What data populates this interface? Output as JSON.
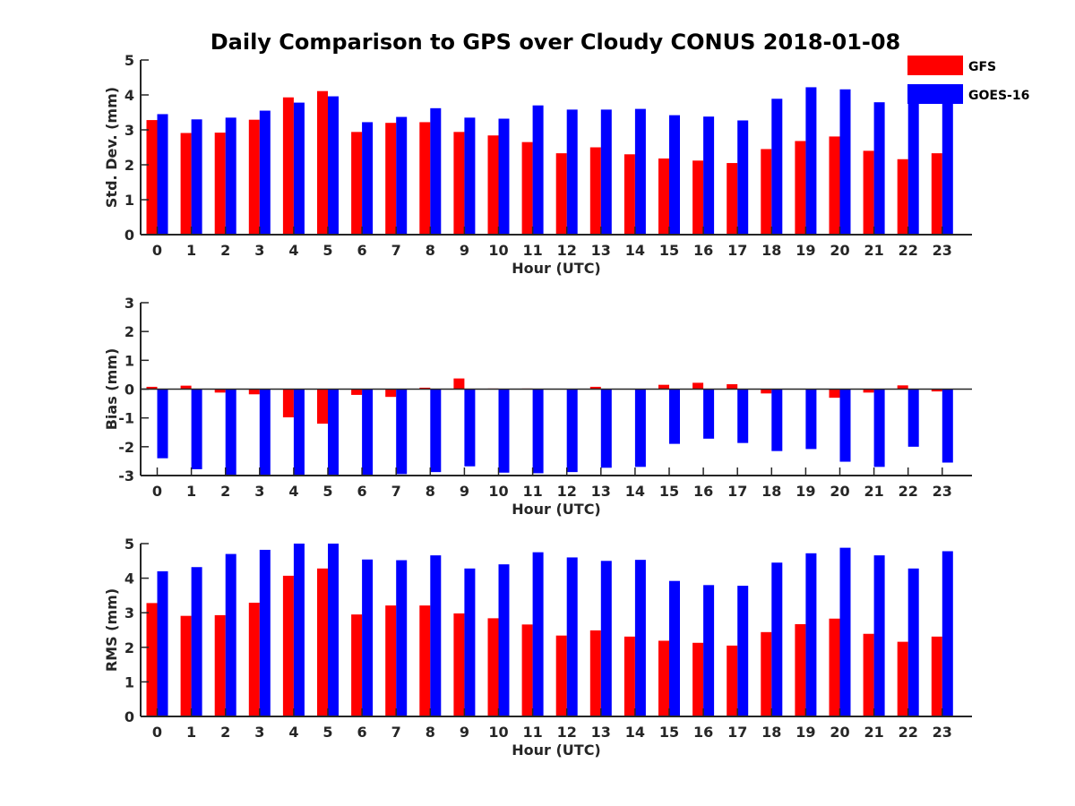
{
  "colors": {
    "gfs": "#ff0000",
    "goes": "#0000ff",
    "axis": "#262626"
  },
  "chart_data": {
    "type": "bar",
    "title": "Daily Comparison to GPS over Cloudy CONUS 2018-01-08",
    "legend": {
      "placement": "top-right",
      "entries": [
        "GFS",
        "GOES-16"
      ]
    },
    "series_names": [
      "GFS",
      "GOES-16"
    ],
    "categories": [
      "0",
      "1",
      "2",
      "3",
      "4",
      "5",
      "6",
      "7",
      "8",
      "9",
      "10",
      "11",
      "12",
      "13",
      "14",
      "15",
      "16",
      "17",
      "18",
      "19",
      "20",
      "21",
      "22",
      "23"
    ],
    "xlabel": "Hour (UTC)",
    "grid": false,
    "panels": [
      {
        "ylabel": "Std. Dev. (mm)",
        "ylim": [
          0,
          5
        ],
        "yticks": [
          "0",
          "1",
          "2",
          "3",
          "4",
          "5"
        ],
        "series": [
          {
            "name": "GFS",
            "values": [
              3.28,
              2.91,
              2.92,
              3.29,
              3.93,
              4.11,
              2.94,
              3.2,
              3.22,
              2.94,
              2.84,
              2.65,
              2.33,
              2.5,
              2.3,
              2.18,
              2.12,
              2.05,
              2.45,
              2.68,
              2.81,
              2.4,
              2.16,
              2.33
            ]
          },
          {
            "name": "GOES-16",
            "values": [
              3.45,
              3.3,
              3.35,
              3.55,
              3.78,
              3.96,
              3.22,
              3.37,
              3.62,
              3.35,
              3.32,
              3.7,
              3.58,
              3.58,
              3.6,
              3.42,
              3.38,
              3.27,
              3.89,
              4.22,
              4.16,
              3.79,
              3.78,
              3.76
            ]
          }
        ]
      },
      {
        "ylabel": "Bias (mm)",
        "ylim": [
          -3,
          3
        ],
        "yticks": [
          "-3",
          "-2",
          "-1",
          "0",
          "1",
          "2",
          "3"
        ],
        "series": [
          {
            "name": "GFS",
            "values": [
              0.08,
              0.12,
              -0.12,
              -0.18,
              -0.98,
              -1.2,
              -0.2,
              -0.27,
              0.05,
              0.37,
              0.02,
              0.02,
              0.0,
              0.08,
              0.0,
              0.15,
              0.22,
              0.17,
              -0.15,
              0.0,
              -0.3,
              -0.12,
              0.13,
              -0.08
            ]
          },
          {
            "name": "GOES-16",
            "values": [
              -2.4,
              -2.78,
              -3.0,
              -3.0,
              -3.0,
              -3.0,
              -3.0,
              -2.95,
              -2.88,
              -2.68,
              -2.9,
              -2.92,
              -2.88,
              -2.73,
              -2.7,
              -1.9,
              -1.72,
              -1.87,
              -2.15,
              -2.08,
              -2.52,
              -2.7,
              -2.0,
              -2.55
            ]
          }
        ]
      },
      {
        "ylabel": "RMS (mm)",
        "ylim": [
          0,
          5
        ],
        "yticks": [
          "0",
          "1",
          "2",
          "3",
          "4",
          "5"
        ],
        "series": [
          {
            "name": "GFS",
            "values": [
              3.28,
              2.91,
              2.93,
              3.29,
              4.07,
              4.28,
              2.95,
              3.21,
              3.21,
              2.98,
              2.84,
              2.66,
              2.34,
              2.49,
              2.31,
              2.19,
              2.13,
              2.05,
              2.44,
              2.67,
              2.83,
              2.39,
              2.16,
              2.31
            ]
          },
          {
            "name": "GOES-16",
            "values": [
              4.2,
              4.32,
              4.7,
              4.82,
              5.0,
              5.0,
              4.54,
              4.52,
              4.66,
              4.28,
              4.4,
              4.75,
              4.6,
              4.5,
              4.53,
              3.92,
              3.8,
              3.78,
              4.45,
              4.72,
              4.88,
              4.66,
              4.28,
              4.78
            ]
          }
        ]
      }
    ]
  }
}
